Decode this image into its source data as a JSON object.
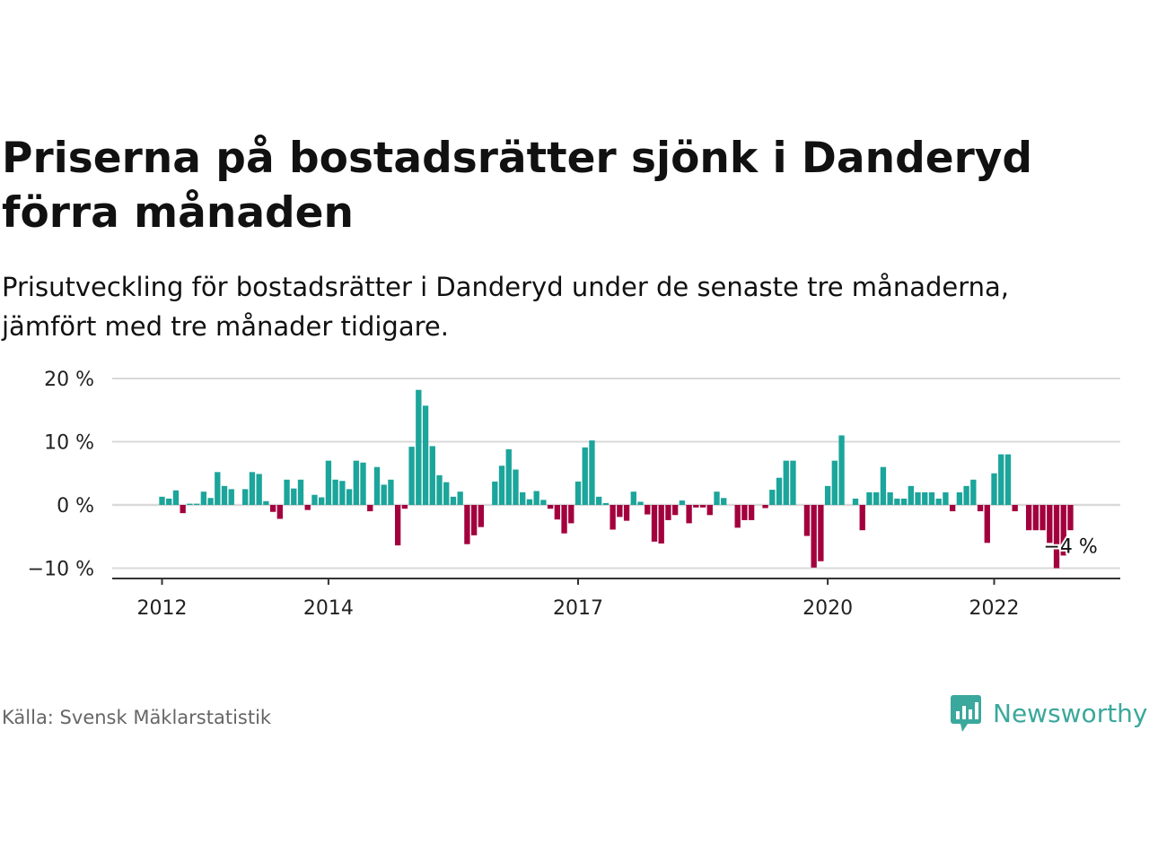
{
  "title": "Priserna på bostadsrätter sjönk i Danderyd förra månaden",
  "subtitle": "Prisutveckling för bostadsrätter i Danderyd under de senaste tre månaderna, jämfört med tre månader tidigare.",
  "source": "Källa: Svensk Mäklarstatistik",
  "logo": {
    "text": "Newsworthy",
    "icon": "bar-chart-icon",
    "color": "#3aa89c"
  },
  "colors": {
    "positive": "#1ba59b",
    "negative": "#a3003e",
    "grid": "#d9d9d9",
    "axis": "#333333"
  },
  "chart_data": {
    "type": "bar",
    "y_tick_labels": [
      "20 %",
      "10 %",
      "0 %",
      "−10 %"
    ],
    "y_ticks": [
      20,
      10,
      0,
      -10
    ],
    "ylim": [
      -11.5,
      21
    ],
    "x_tick_labels": [
      "2012",
      "2014",
      "2017",
      "2020",
      "2022"
    ],
    "x_tick_positions": [
      2012,
      2014,
      2017,
      2020,
      2022
    ],
    "xlim": [
      2011.5,
      2023.75
    ],
    "x_start": 2012,
    "x_step_months": 1,
    "grid": true,
    "annotation": "−4 %",
    "series": [
      {
        "values": [
          1.3,
          1.0,
          2.3,
          -1.3,
          0.2,
          0.2,
          2.1,
          1.1,
          5.2,
          3.0,
          2.5,
          0.0,
          2.5,
          5.2,
          4.9,
          0.6,
          -1.1,
          -2.2,
          4.0,
          2.6,
          4.0,
          -0.8,
          1.6,
          1.2,
          7.0,
          4.0,
          3.8,
          2.5,
          7.0,
          6.7,
          -1.0,
          6.0,
          3.2,
          4.0,
          -6.4,
          -0.6,
          9.2,
          18.2,
          15.7,
          9.3,
          4.7,
          3.6,
          1.3,
          2.1,
          -6.2,
          -4.8,
          -3.5,
          0.0,
          3.7,
          6.2,
          8.8,
          5.6,
          2.0,
          0.9,
          2.2,
          0.8,
          -0.6,
          -2.3,
          -4.5,
          -2.9,
          3.7,
          9.1,
          10.2,
          1.3,
          0.3,
          -3.9,
          -1.9,
          -2.5,
          2.1,
          0.5,
          -1.5,
          -5.8,
          -6.1,
          -2.4,
          -1.6,
          0.7,
          -2.9,
          -0.4,
          -0.4,
          -1.6,
          2.1,
          1.1,
          0.0,
          -3.6,
          -2.4,
          -2.4,
          0.0,
          -0.5,
          2.4,
          4.3,
          7.0,
          7.0,
          0.0,
          -4.9,
          -9.9,
          -8.9,
          3.0,
          7.0,
          11.0,
          0.0,
          1.0,
          -4.0,
          2.0,
          2.0,
          6.0,
          2.0,
          1.0,
          1.0,
          3.0,
          2.0,
          2.0,
          2.0,
          1.0,
          2.0,
          -1.0,
          2.0,
          3.0,
          4.0,
          -1.0,
          -6.0,
          5.0,
          8.0,
          8.0,
          -1.0,
          0.0,
          -4.0,
          -4.0,
          -4.0,
          -6.0,
          -10.0,
          -8.0,
          -4.0
        ]
      }
    ]
  }
}
